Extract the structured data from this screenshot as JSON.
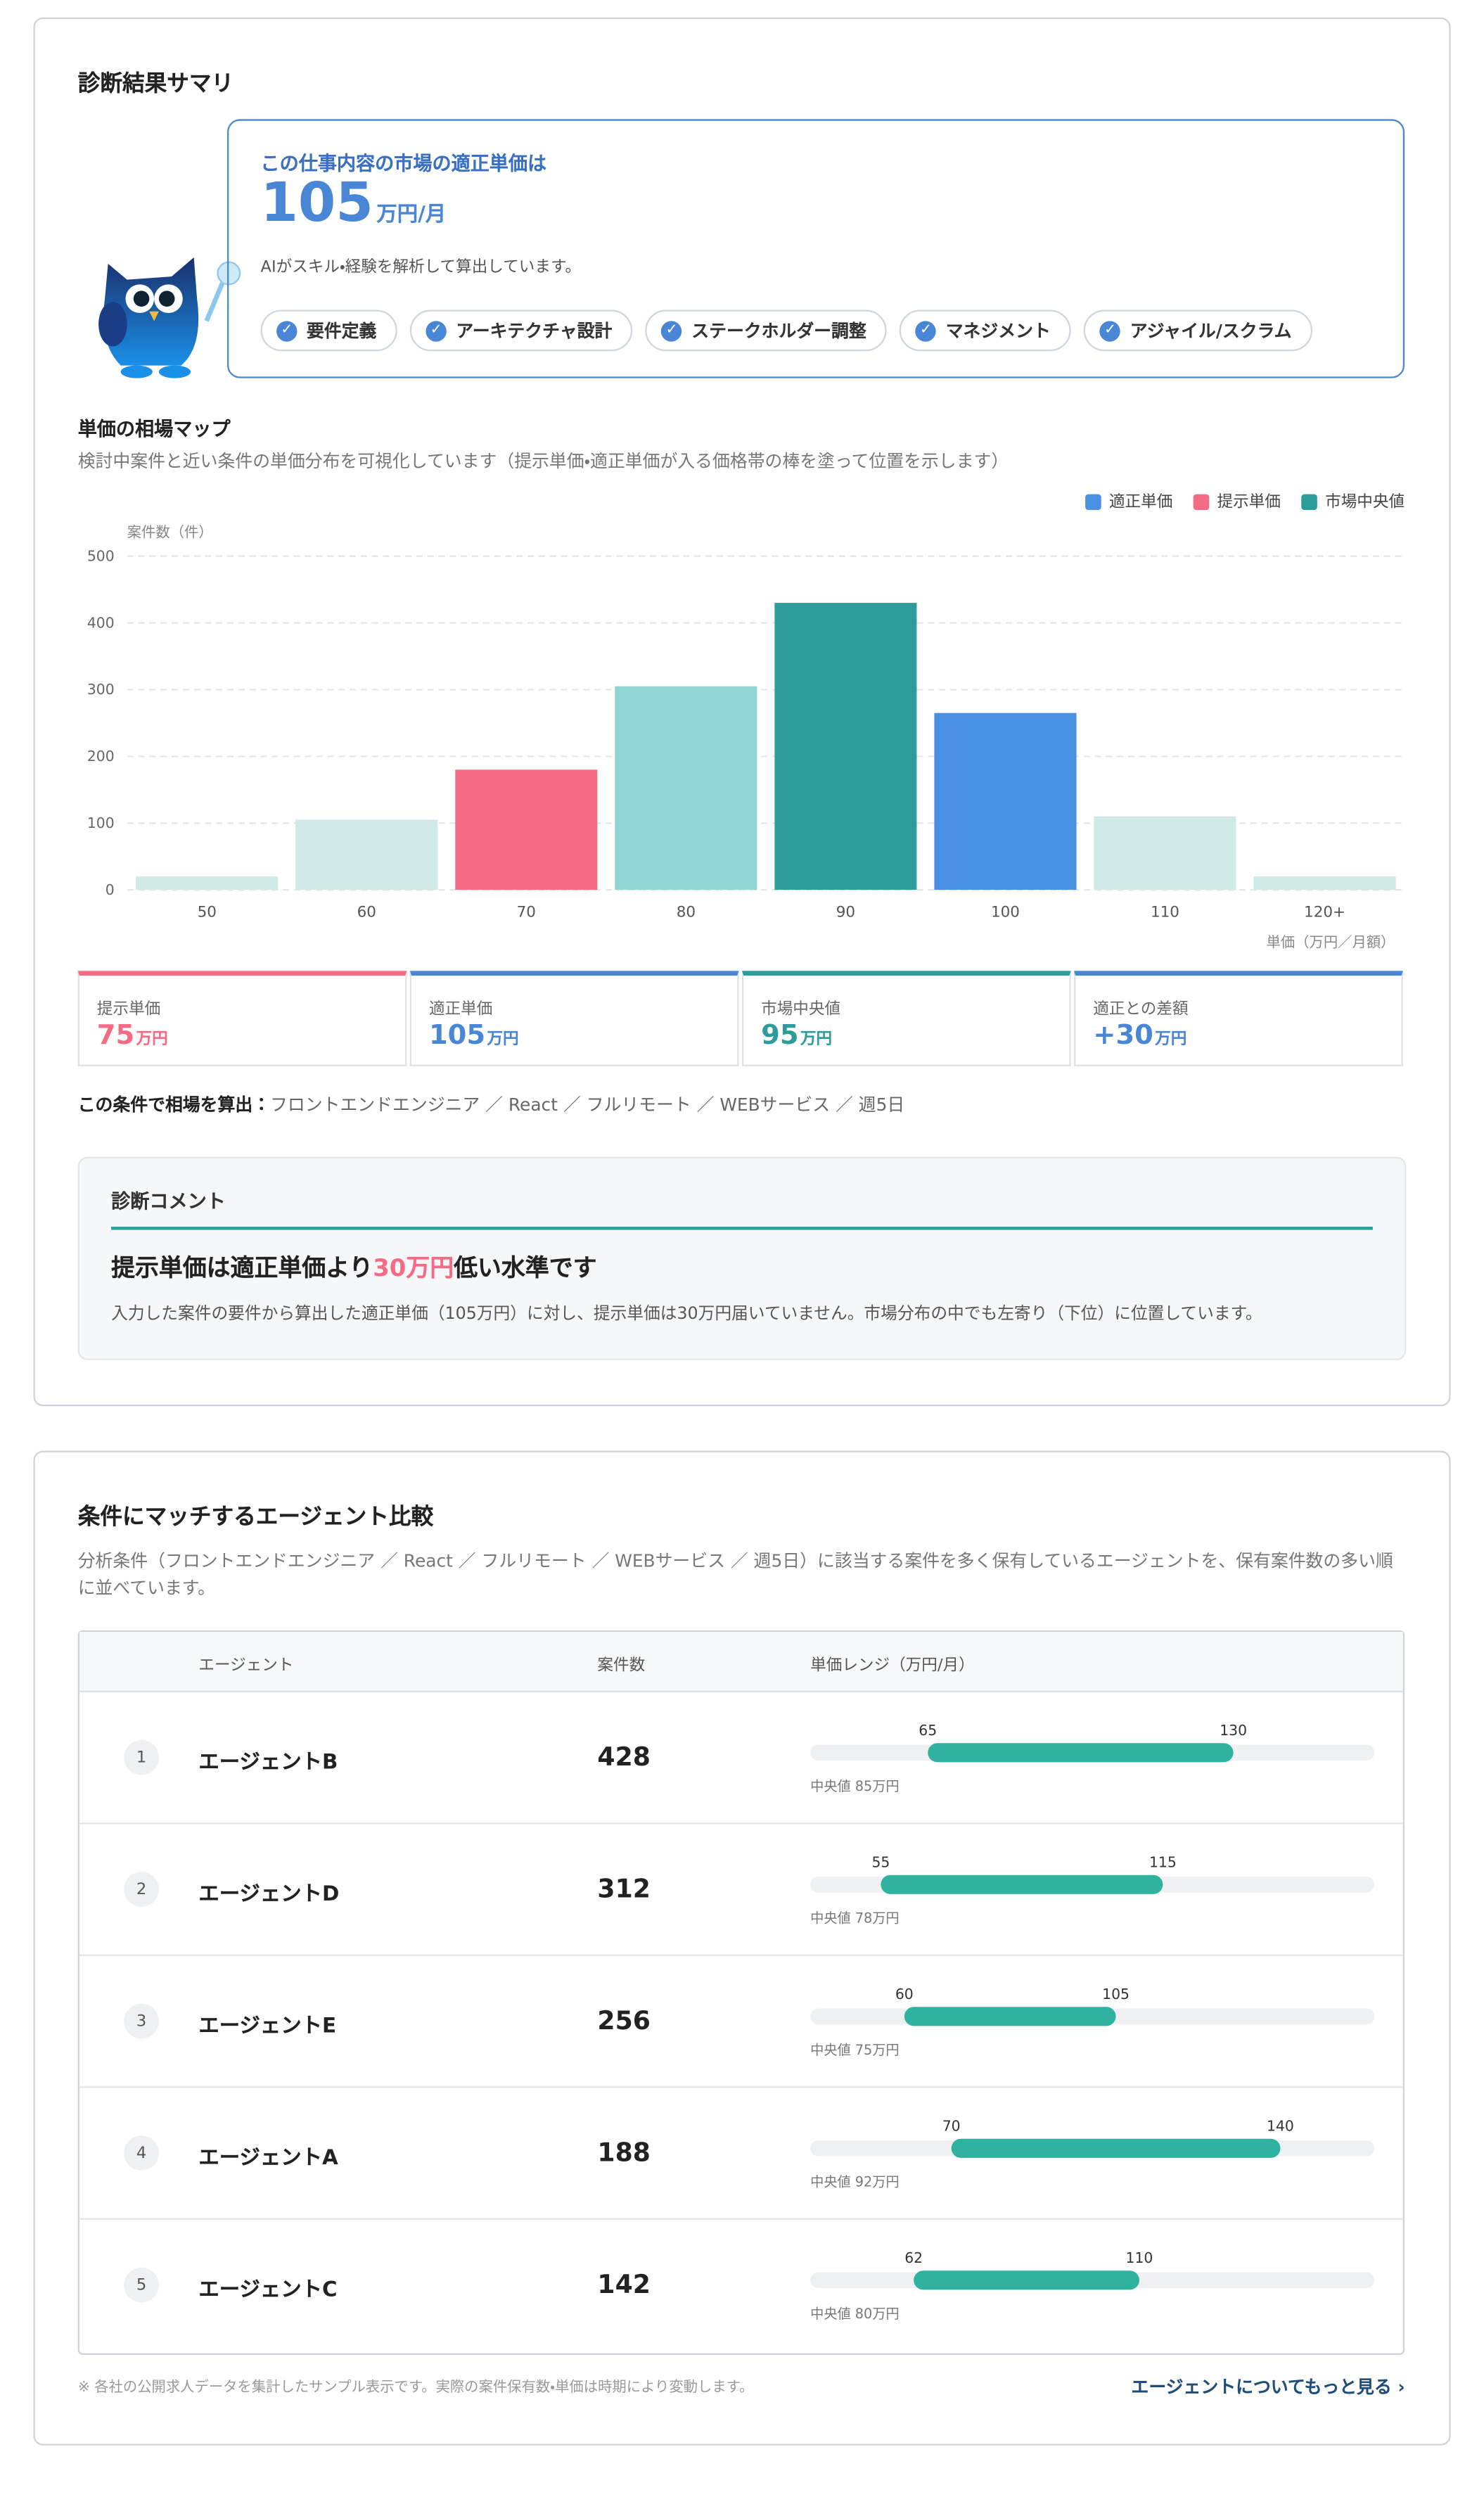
{
  "summary": {
    "title": "診断結果サマリ",
    "headline": "この仕事内容の市場の適正単価は",
    "price": 105,
    "price_unit": "万円/月",
    "note": "AIがスキル・経験を解析して算出しています。",
    "skills": [
      "要件定義",
      "アーキテクチャ設計",
      "ステークホルダー調整",
      "マネジメント",
      "アジャイル/スクラム"
    ]
  },
  "chart_data": {
    "type": "bar",
    "title": "単価の相場マップ",
    "subtitle": "検討中案件と近い条件の単価分布を可視化しています（提示単価・適正単価が入る価格帯の棒を塗って位置を示します）",
    "y_label": "案件数（件）",
    "x_label": "単価（万円／月額）",
    "categories": [
      "50",
      "60",
      "70",
      "80",
      "90",
      "100",
      "110",
      "120+"
    ],
    "values": [
      20,
      105,
      180,
      305,
      430,
      265,
      110,
      20
    ],
    "bar_colors": [
      "#cfe8e8",
      "#cfe8e8",
      "#f56b85",
      "#91d5d5",
      "#2e9c9b",
      "#4a90e2",
      "#cfe8e8",
      "#cfe8e8"
    ],
    "legend": [
      {
        "name": "適正単価",
        "color": "#4a90e2"
      },
      {
        "name": "提示単価",
        "color": "#f56b85"
      },
      {
        "name": "市場中央値",
        "color": "#2e9c9b"
      }
    ],
    "ylim": [
      0,
      500
    ],
    "yticks": [
      0,
      100,
      200,
      300,
      400,
      500
    ],
    "grid": true
  },
  "stats": [
    {
      "label": "提示単価",
      "value": "75",
      "unit": "万円",
      "color": "#f56b85"
    },
    {
      "label": "適正単価",
      "value": "105",
      "unit": "万円",
      "color": "#4a86d6"
    },
    {
      "label": "市場中央値",
      "value": "95",
      "unit": "万円",
      "color": "#2e9c9b"
    },
    {
      "label": "適正との差額",
      "value": "+30",
      "unit": "万円",
      "color": "#4a86d6"
    }
  ],
  "condition": {
    "label": "この条件で相場を算出：",
    "text": "フロントエンドエンジニア ／ React ／ フルリモート ／ WEBサービス ／ 週5日"
  },
  "comment": {
    "title": "診断コメント",
    "headline_before": "提示単価は適正単価より",
    "headline_highlight": "30万円",
    "headline_after": "低い水準です",
    "body": "入力した案件の要件から算出した適正単価（105万円）に対し、提示単価は30万円届いていません。市場分布の中でも左寄り（下位）に位置しています。"
  },
  "agents": {
    "title": "条件にマッチするエージェント比較",
    "description": "分析条件（フロントエンドエンジニア ／ React ／ フルリモート ／ WEBサービス ／ 週5日）に該当する案件を多く保有しているエージェントを、保有案件数の多い順に並べています。",
    "headers": [
      "エージェント",
      "案件数",
      "単価レンジ（万円/月）"
    ],
    "range_scale": [
      40,
      160
    ],
    "rows": [
      {
        "rank": 1,
        "name": "エージェントB",
        "count": 428,
        "min": 65,
        "max": 130,
        "median": "中央値 85万円"
      },
      {
        "rank": 2,
        "name": "エージェントD",
        "count": 312,
        "min": 55,
        "max": 115,
        "median": "中央値 78万円"
      },
      {
        "rank": 3,
        "name": "エージェントE",
        "count": 256,
        "min": 60,
        "max": 105,
        "median": "中央値 75万円"
      },
      {
        "rank": 4,
        "name": "エージェントA",
        "count": 188,
        "min": 70,
        "max": 140,
        "median": "中央値 92万円"
      },
      {
        "rank": 5,
        "name": "エージェントC",
        "count": 142,
        "min": 62,
        "max": 110,
        "median": "中央値 80万円"
      }
    ],
    "footnote": "※ 各社の公開求人データを集計したサンプル表示です。実際の案件保有数・単価は時期により変動します。",
    "more_link": "エージェントについてもっと見る ›"
  }
}
